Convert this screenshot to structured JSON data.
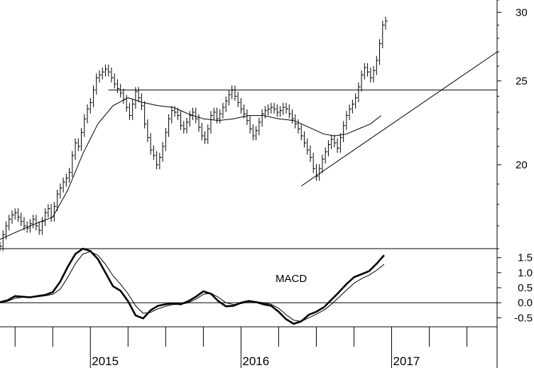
{
  "chart_data": [
    {
      "type": "ohlc",
      "panel": "price",
      "scale": "log",
      "ylim": [
        16,
        31
      ],
      "yticks": [
        20,
        25,
        30
      ],
      "xlim": [
        2014.4,
        2017.7
      ],
      "years": [
        {
          "value": 2015,
          "label": "2015"
        },
        {
          "value": 2016,
          "label": "2016"
        },
        {
          "value": 2017,
          "label": "2017"
        }
      ],
      "bars_weekly_close": [
        [
          2014.4,
          16.1
        ],
        [
          2014.42,
          16.6
        ],
        [
          2014.44,
          17.0
        ],
        [
          2014.46,
          17.3
        ],
        [
          2014.48,
          17.5
        ],
        [
          2014.5,
          17.6
        ],
        [
          2014.52,
          17.4
        ],
        [
          2014.54,
          17.2
        ],
        [
          2014.56,
          17.0
        ],
        [
          2014.58,
          16.9
        ],
        [
          2014.6,
          17.1
        ],
        [
          2014.62,
          17.3
        ],
        [
          2014.64,
          17.0
        ],
        [
          2014.66,
          16.8
        ],
        [
          2014.68,
          17.2
        ],
        [
          2014.7,
          17.6
        ],
        [
          2014.72,
          17.8
        ],
        [
          2014.74,
          17.4
        ],
        [
          2014.76,
          17.9
        ],
        [
          2014.78,
          18.5
        ],
        [
          2014.8,
          18.8
        ],
        [
          2014.82,
          19.1
        ],
        [
          2014.84,
          19.3
        ],
        [
          2014.86,
          19.6
        ],
        [
          2014.88,
          20.5
        ],
        [
          2014.9,
          21.2
        ],
        [
          2014.92,
          21.0
        ],
        [
          2014.94,
          21.8
        ],
        [
          2014.96,
          22.6
        ],
        [
          2014.98,
          23.2
        ],
        [
          2015.0,
          23.6
        ],
        [
          2015.02,
          24.4
        ],
        [
          2015.04,
          25.2
        ],
        [
          2015.06,
          25.4
        ],
        [
          2015.08,
          25.6
        ],
        [
          2015.1,
          25.8
        ],
        [
          2015.12,
          25.6
        ],
        [
          2015.14,
          25.2
        ],
        [
          2015.16,
          24.8
        ],
        [
          2015.18,
          24.5
        ],
        [
          2015.2,
          24.2
        ],
        [
          2015.22,
          23.8
        ],
        [
          2015.24,
          23.3
        ],
        [
          2015.26,
          22.8
        ],
        [
          2015.28,
          23.5
        ],
        [
          2015.3,
          24.3
        ],
        [
          2015.32,
          23.9
        ],
        [
          2015.34,
          23.4
        ],
        [
          2015.36,
          22.3
        ],
        [
          2015.38,
          21.5
        ],
        [
          2015.4,
          20.8
        ],
        [
          2015.42,
          20.5
        ],
        [
          2015.44,
          20.0
        ],
        [
          2015.46,
          20.4
        ],
        [
          2015.48,
          21.0
        ],
        [
          2015.5,
          21.8
        ],
        [
          2015.52,
          22.6
        ],
        [
          2015.54,
          23.1
        ],
        [
          2015.56,
          23.0
        ],
        [
          2015.58,
          22.8
        ],
        [
          2015.6,
          22.2
        ],
        [
          2015.62,
          22.0
        ],
        [
          2015.64,
          22.4
        ],
        [
          2015.66,
          22.8
        ],
        [
          2015.68,
          23.0
        ],
        [
          2015.7,
          22.6
        ],
        [
          2015.72,
          22.1
        ],
        [
          2015.74,
          21.6
        ],
        [
          2015.76,
          21.4
        ],
        [
          2015.78,
          22.0
        ],
        [
          2015.8,
          22.8
        ],
        [
          2015.82,
          23.0
        ],
        [
          2015.84,
          22.6
        ],
        [
          2015.86,
          22.9
        ],
        [
          2015.88,
          23.3
        ],
        [
          2015.9,
          23.7
        ],
        [
          2015.92,
          24.1
        ],
        [
          2015.94,
          24.4
        ],
        [
          2015.96,
          24.0
        ],
        [
          2015.98,
          23.6
        ],
        [
          2016.0,
          23.2
        ],
        [
          2016.02,
          22.9
        ],
        [
          2016.04,
          22.5
        ],
        [
          2016.06,
          22.0
        ],
        [
          2016.08,
          21.6
        ],
        [
          2016.1,
          21.9
        ],
        [
          2016.12,
          22.4
        ],
        [
          2016.14,
          22.9
        ],
        [
          2016.16,
          23.1
        ],
        [
          2016.18,
          23.2
        ],
        [
          2016.2,
          23.3
        ],
        [
          2016.22,
          23.2
        ],
        [
          2016.24,
          23.0
        ],
        [
          2016.26,
          23.1
        ],
        [
          2016.28,
          23.3
        ],
        [
          2016.3,
          23.2
        ],
        [
          2016.32,
          22.9
        ],
        [
          2016.34,
          22.6
        ],
        [
          2016.36,
          22.3
        ],
        [
          2016.38,
          22.0
        ],
        [
          2016.4,
          21.6
        ],
        [
          2016.42,
          21.2
        ],
        [
          2016.44,
          20.8
        ],
        [
          2016.46,
          20.4
        ],
        [
          2016.48,
          19.8
        ],
        [
          2016.5,
          19.4
        ],
        [
          2016.52,
          19.8
        ],
        [
          2016.54,
          20.3
        ],
        [
          2016.56,
          20.7
        ],
        [
          2016.58,
          21.1
        ],
        [
          2016.6,
          21.4
        ],
        [
          2016.62,
          21.2
        ],
        [
          2016.64,
          20.9
        ],
        [
          2016.66,
          21.5
        ],
        [
          2016.68,
          22.2
        ],
        [
          2016.7,
          22.8
        ],
        [
          2016.72,
          23.2
        ],
        [
          2016.74,
          23.5
        ],
        [
          2016.76,
          23.9
        ],
        [
          2016.78,
          24.6
        ],
        [
          2016.8,
          25.4
        ],
        [
          2016.82,
          25.9
        ],
        [
          2016.84,
          25.6
        ],
        [
          2016.86,
          25.2
        ],
        [
          2016.88,
          25.7
        ],
        [
          2016.9,
          26.4
        ],
        [
          2016.92,
          27.6
        ],
        [
          2016.94,
          29.0
        ],
        [
          2016.96,
          29.3
        ]
      ],
      "moving_average": [
        [
          2014.4,
          16.4
        ],
        [
          2014.6,
          17.0
        ],
        [
          2014.75,
          17.4
        ],
        [
          2014.85,
          18.7
        ],
        [
          2014.95,
          20.6
        ],
        [
          2015.05,
          22.3
        ],
        [
          2015.15,
          23.4
        ],
        [
          2015.25,
          23.9
        ],
        [
          2015.35,
          23.6
        ],
        [
          2015.45,
          23.4
        ],
        [
          2015.55,
          23.3
        ],
        [
          2015.65,
          22.9
        ],
        [
          2015.75,
          22.6
        ],
        [
          2015.85,
          22.5
        ],
        [
          2015.95,
          22.6
        ],
        [
          2016.05,
          22.8
        ],
        [
          2016.15,
          22.8
        ],
        [
          2016.25,
          22.6
        ],
        [
          2016.35,
          22.5
        ],
        [
          2016.45,
          22.1
        ],
        [
          2016.55,
          21.7
        ],
        [
          2016.62,
          21.6
        ],
        [
          2016.7,
          21.7
        ],
        [
          2016.78,
          22.0
        ],
        [
          2016.86,
          22.3
        ],
        [
          2016.93,
          22.8
        ]
      ],
      "trendlines": [
        {
          "name": "resistance",
          "x": [
            2015.12,
            2017.7
          ],
          "y": [
            24.4,
            24.4
          ]
        },
        {
          "name": "support",
          "x": [
            2016.4,
            2017.7
          ],
          "y": [
            18.9,
            27.0
          ]
        }
      ]
    },
    {
      "type": "line",
      "panel": "macd",
      "annotation": "MACD",
      "ylim": [
        -0.8,
        1.8
      ],
      "yticks": [
        {
          "value": -0.5,
          "label": "-0.5"
        },
        {
          "value": 0.0,
          "label": "0.0"
        },
        {
          "value": 0.5,
          "label": "0.5"
        },
        {
          "value": 1.0,
          "label": "1.0"
        },
        {
          "value": 1.5,
          "label": "1.5"
        }
      ],
      "series": [
        {
          "role": "macd",
          "x": [
            2014.4,
            2014.45,
            2014.5,
            2014.55,
            2014.6,
            2014.65,
            2014.7,
            2014.75,
            2014.8,
            2014.85,
            2014.9,
            2014.95,
            2015.0,
            2015.05,
            2015.1,
            2015.15,
            2015.2,
            2015.25,
            2015.3,
            2015.35,
            2015.4,
            2015.45,
            2015.5,
            2015.55,
            2015.6,
            2015.65,
            2015.7,
            2015.75,
            2015.8,
            2015.85,
            2015.9,
            2015.95,
            2016.0,
            2016.05,
            2016.1,
            2016.15,
            2016.2,
            2016.25,
            2016.3,
            2016.35,
            2016.4,
            2016.45,
            2016.5,
            2016.55,
            2016.6,
            2016.65,
            2016.7,
            2016.75,
            2016.8,
            2016.85,
            2016.9,
            2016.95
          ],
          "y": [
            0.02,
            0.08,
            0.22,
            0.2,
            0.18,
            0.22,
            0.26,
            0.35,
            0.7,
            1.2,
            1.62,
            1.8,
            1.72,
            1.45,
            1.0,
            0.55,
            0.4,
            0.05,
            -0.42,
            -0.52,
            -0.25,
            -0.1,
            -0.05,
            -0.02,
            -0.05,
            0.05,
            0.2,
            0.38,
            0.3,
            0.05,
            -0.12,
            -0.1,
            0.0,
            0.06,
            0.02,
            -0.05,
            -0.1,
            -0.3,
            -0.55,
            -0.7,
            -0.62,
            -0.4,
            -0.3,
            -0.15,
            0.1,
            0.35,
            0.62,
            0.85,
            0.95,
            1.05,
            1.3,
            1.58
          ]
        },
        {
          "role": "signal",
          "x": [
            2014.4,
            2014.45,
            2014.5,
            2014.55,
            2014.6,
            2014.65,
            2014.7,
            2014.75,
            2014.8,
            2014.85,
            2014.9,
            2014.95,
            2015.0,
            2015.05,
            2015.1,
            2015.15,
            2015.2,
            2015.25,
            2015.3,
            2015.35,
            2015.4,
            2015.45,
            2015.5,
            2015.55,
            2015.6,
            2015.65,
            2015.7,
            2015.75,
            2015.8,
            2015.85,
            2015.9,
            2015.95,
            2016.0,
            2016.05,
            2016.1,
            2016.15,
            2016.2,
            2016.25,
            2016.3,
            2016.35,
            2016.4,
            2016.45,
            2016.5,
            2016.55,
            2016.6,
            2016.65,
            2016.7,
            2016.75,
            2016.8,
            2016.85,
            2016.9,
            2016.95
          ],
          "y": [
            0.0,
            0.05,
            0.15,
            0.18,
            0.18,
            0.2,
            0.23,
            0.28,
            0.45,
            0.85,
            1.3,
            1.62,
            1.7,
            1.58,
            1.28,
            0.9,
            0.62,
            0.3,
            -0.1,
            -0.35,
            -0.32,
            -0.2,
            -0.12,
            -0.06,
            -0.05,
            0.0,
            0.12,
            0.28,
            0.32,
            0.18,
            0.0,
            -0.06,
            -0.03,
            0.03,
            0.04,
            0.0,
            -0.05,
            -0.18,
            -0.4,
            -0.58,
            -0.62,
            -0.5,
            -0.38,
            -0.25,
            -0.05,
            0.18,
            0.42,
            0.65,
            0.8,
            0.92,
            1.08,
            1.28
          ]
        }
      ]
    }
  ]
}
